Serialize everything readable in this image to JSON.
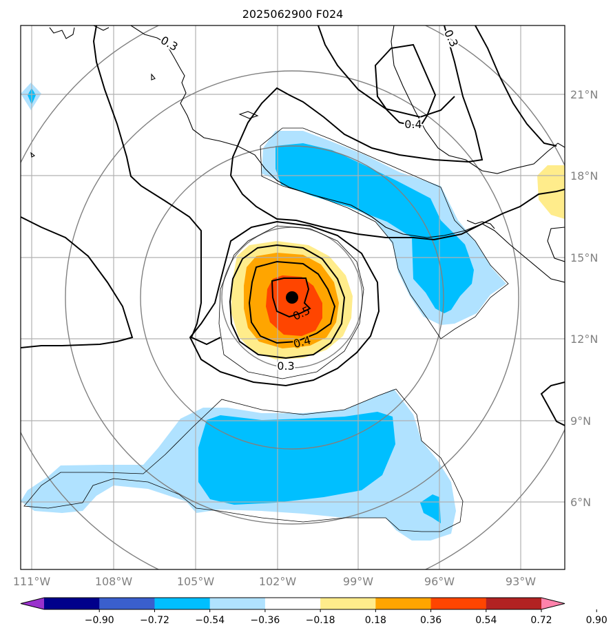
{
  "title": "2025062900 F024",
  "lon_labels": [
    "111°W",
    "108°W",
    "105°W",
    "102°W",
    "99°W",
    "96°W",
    "93°W"
  ],
  "lat_labels": [
    "21°N",
    "18°N",
    "15°N",
    "12°N",
    "9°N",
    "6°N"
  ],
  "contour_labels": [
    "0.3",
    "0.3",
    "0.4",
    "0.5",
    "0.4",
    "0.3"
  ],
  "colorbar": {
    "ticks": [
      "−0.90",
      "−0.72",
      "−0.54",
      "−0.36",
      "−0.18",
      "0.18",
      "0.36",
      "0.54",
      "0.72",
      "0.90"
    ],
    "colors": [
      "#9932cc",
      "#00008b",
      "#3a5fcd",
      "#00bfff",
      "#b0e2ff",
      "#ffffff",
      "#ffec8b",
      "#ffa500",
      "#ff4500",
      "#b22222",
      "#ff82ab"
    ]
  },
  "storm_center": {
    "lon": -101.5,
    "lat": 13.5
  }
}
